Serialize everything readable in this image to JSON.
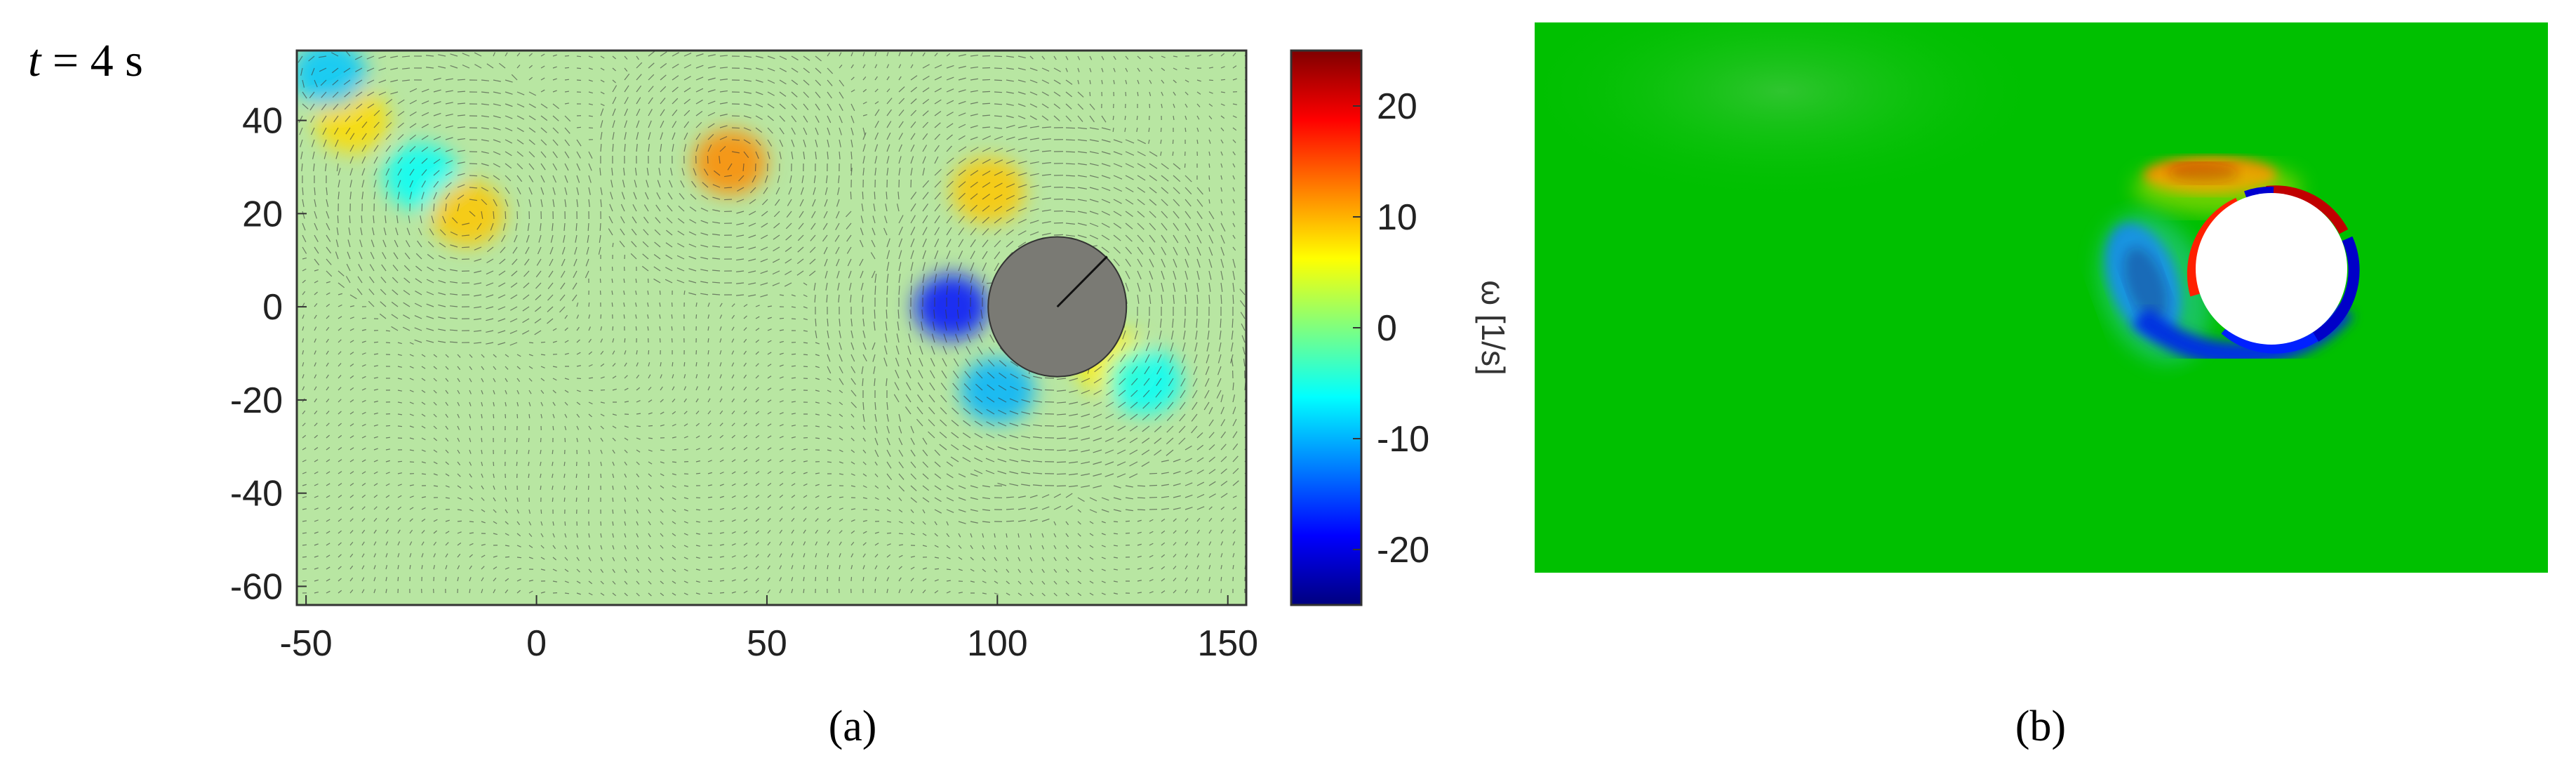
{
  "figure": {
    "time_label": {
      "var": "t",
      "rest": " = 4 s"
    },
    "captions": [
      "(a)",
      "(b)"
    ]
  },
  "chart_data": [
    {
      "type": "heatmap",
      "panel": "(a)",
      "description_overlay": "velocity vector field over vorticity field with cylinder",
      "xticks": [
        "-50",
        "0",
        "50",
        "100",
        "150"
      ],
      "xtick_values": [
        -50,
        0,
        50,
        100,
        150
      ],
      "yticks": [
        "40",
        "20",
        "0",
        "-20",
        "-40",
        "-60"
      ],
      "ytick_values": [
        40,
        20,
        0,
        -20,
        -40,
        -60
      ],
      "xlim": [
        -52,
        154
      ],
      "ylim": [
        -64,
        55
      ],
      "colormap": "jet",
      "colorbar": {
        "label": "ω [1/s]",
        "range": [
          -25,
          25
        ],
        "ticks": [
          "20",
          "10",
          "0",
          "-10",
          "-20"
        ],
        "tick_values": [
          20,
          10,
          0,
          -10,
          -20
        ]
      },
      "cylinder": {
        "center": [
          113,
          0
        ],
        "radius": 15
      },
      "vortices": [
        {
          "x": 42,
          "y": 31,
          "w": 12
        },
        {
          "x": -40,
          "y": 40,
          "w": 8
        },
        {
          "x": -45,
          "y": 50,
          "w": -9
        },
        {
          "x": -25,
          "y": 28,
          "w": -6
        },
        {
          "x": -15,
          "y": 20,
          "w": 9
        },
        {
          "x": 90,
          "y": 0,
          "w": -18
        },
        {
          "x": 100,
          "y": -18,
          "w": -10
        },
        {
          "x": 98,
          "y": 25,
          "w": 9
        },
        {
          "x": 125,
          "y": -12,
          "w": 7
        },
        {
          "x": 132,
          "y": -16,
          "w": -6
        }
      ],
      "grid": false
    },
    {
      "type": "heatmap",
      "panel": "(b)",
      "colormap": "jet",
      "background_vorticity": 0,
      "features": [
        "red shear layer above cylinder",
        "blue shear layer below cylinder",
        "blue vortex upstream-left of cylinder",
        "white cylinder"
      ]
    }
  ]
}
